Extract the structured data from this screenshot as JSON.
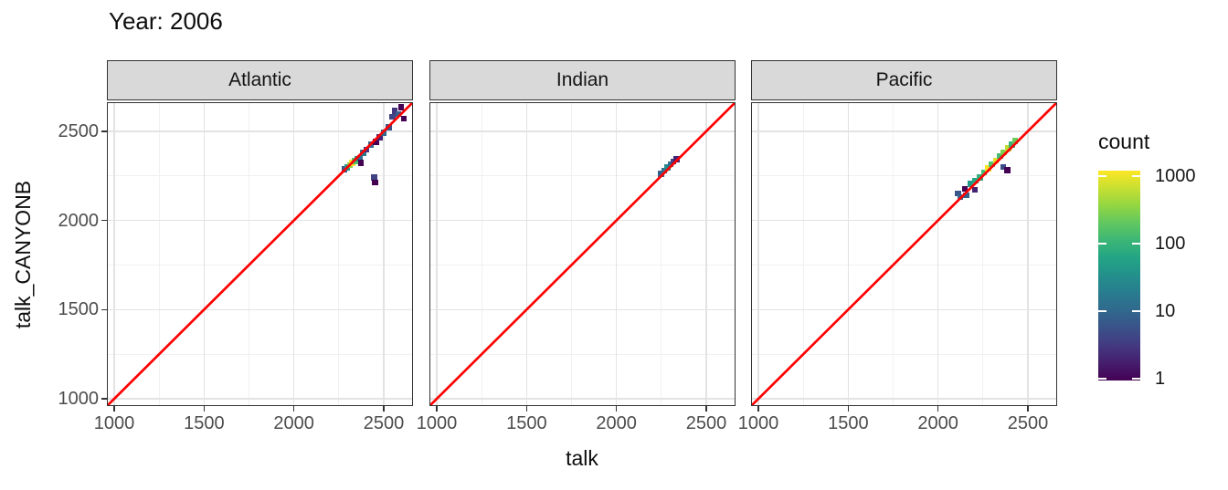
{
  "title": "Year: 2006",
  "axes": {
    "x_label": "talk",
    "y_label": "talk_CANYONB",
    "x_ticks": [
      1000,
      1500,
      2000,
      2500
    ],
    "y_ticks": [
      1000,
      1500,
      2000,
      2500
    ],
    "minor_ticks": [
      1250,
      1750,
      2250
    ],
    "domain": [
      959,
      2663
    ]
  },
  "legend": {
    "title": "count",
    "tick_labels": [
      "1000",
      "100",
      "10",
      "1"
    ],
    "tick_values": [
      1000,
      100,
      10,
      1
    ],
    "scale": "log10",
    "limits": [
      1,
      1000
    ]
  },
  "colors": {
    "reference_line": "#ff0000",
    "strip_fill": "#d9d9d9",
    "panel_border": "#333333",
    "grid_major": "#e3e3e3",
    "grid_minor": "#f1f1f1",
    "tick_label": "#4d4d4d",
    "viridis_stops": [
      "#440154",
      "#46327e",
      "#365c8d",
      "#277f8e",
      "#1fa187",
      "#4ac16d",
      "#a0da39",
      "#fde725"
    ]
  },
  "chart_data": {
    "type": "heatmap",
    "title": "Year: 2006",
    "xlabel": "talk",
    "ylabel": "talk_CANYONB",
    "x_range": [
      959,
      2663
    ],
    "y_range": [
      959,
      2663
    ],
    "grid": "on",
    "legend_position": "right",
    "reference_line": "y = x (red)",
    "color_scale": {
      "palette": "viridis",
      "trans": "log10",
      "limits": [
        1,
        1000
      ],
      "name": "count"
    },
    "bin_size": 32,
    "facets": [
      {
        "name": "Atlantic",
        "tiles": [
          [
            2282,
            2288,
            6
          ],
          [
            2298,
            2298,
            40
          ],
          [
            2312,
            2310,
            300
          ],
          [
            2326,
            2322,
            900
          ],
          [
            2340,
            2334,
            150
          ],
          [
            2354,
            2346,
            40
          ],
          [
            2368,
            2352,
            12
          ],
          [
            2372,
            2322,
            1
          ],
          [
            2386,
            2378,
            15
          ],
          [
            2404,
            2396,
            3
          ],
          [
            2430,
            2424,
            10
          ],
          [
            2448,
            2242,
            4
          ],
          [
            2452,
            2212,
            1
          ],
          [
            2456,
            2440,
            1
          ],
          [
            2478,
            2466,
            2
          ],
          [
            2500,
            2492,
            10
          ],
          [
            2528,
            2522,
            6
          ],
          [
            2548,
            2582,
            4
          ],
          [
            2560,
            2614,
            3
          ],
          [
            2582,
            2596,
            8
          ],
          [
            2612,
            2570,
            1
          ],
          [
            2596,
            2636,
            1
          ]
        ]
      },
      {
        "name": "Indian",
        "tiles": [
          [
            2248,
            2262,
            8
          ],
          [
            2266,
            2278,
            12
          ],
          [
            2284,
            2298,
            25
          ],
          [
            2302,
            2314,
            12
          ],
          [
            2318,
            2330,
            4
          ],
          [
            2334,
            2344,
            2
          ]
        ]
      },
      {
        "name": "Pacific",
        "tiles": [
          [
            2112,
            2152,
            6
          ],
          [
            2124,
            2130,
            10
          ],
          [
            2148,
            2178,
            1
          ],
          [
            2156,
            2142,
            8
          ],
          [
            2180,
            2205,
            40
          ],
          [
            2206,
            2172,
            2
          ],
          [
            2208,
            2222,
            60
          ],
          [
            2232,
            2242,
            80
          ],
          [
            2256,
            2270,
            120
          ],
          [
            2278,
            2292,
            950
          ],
          [
            2300,
            2316,
            150
          ],
          [
            2322,
            2336,
            700
          ],
          [
            2344,
            2360,
            120
          ],
          [
            2362,
            2300,
            5
          ],
          [
            2366,
            2382,
            250
          ],
          [
            2386,
            2282,
            1
          ],
          [
            2390,
            2404,
            500
          ],
          [
            2412,
            2426,
            90
          ],
          [
            2430,
            2446,
            200
          ]
        ]
      }
    ]
  }
}
